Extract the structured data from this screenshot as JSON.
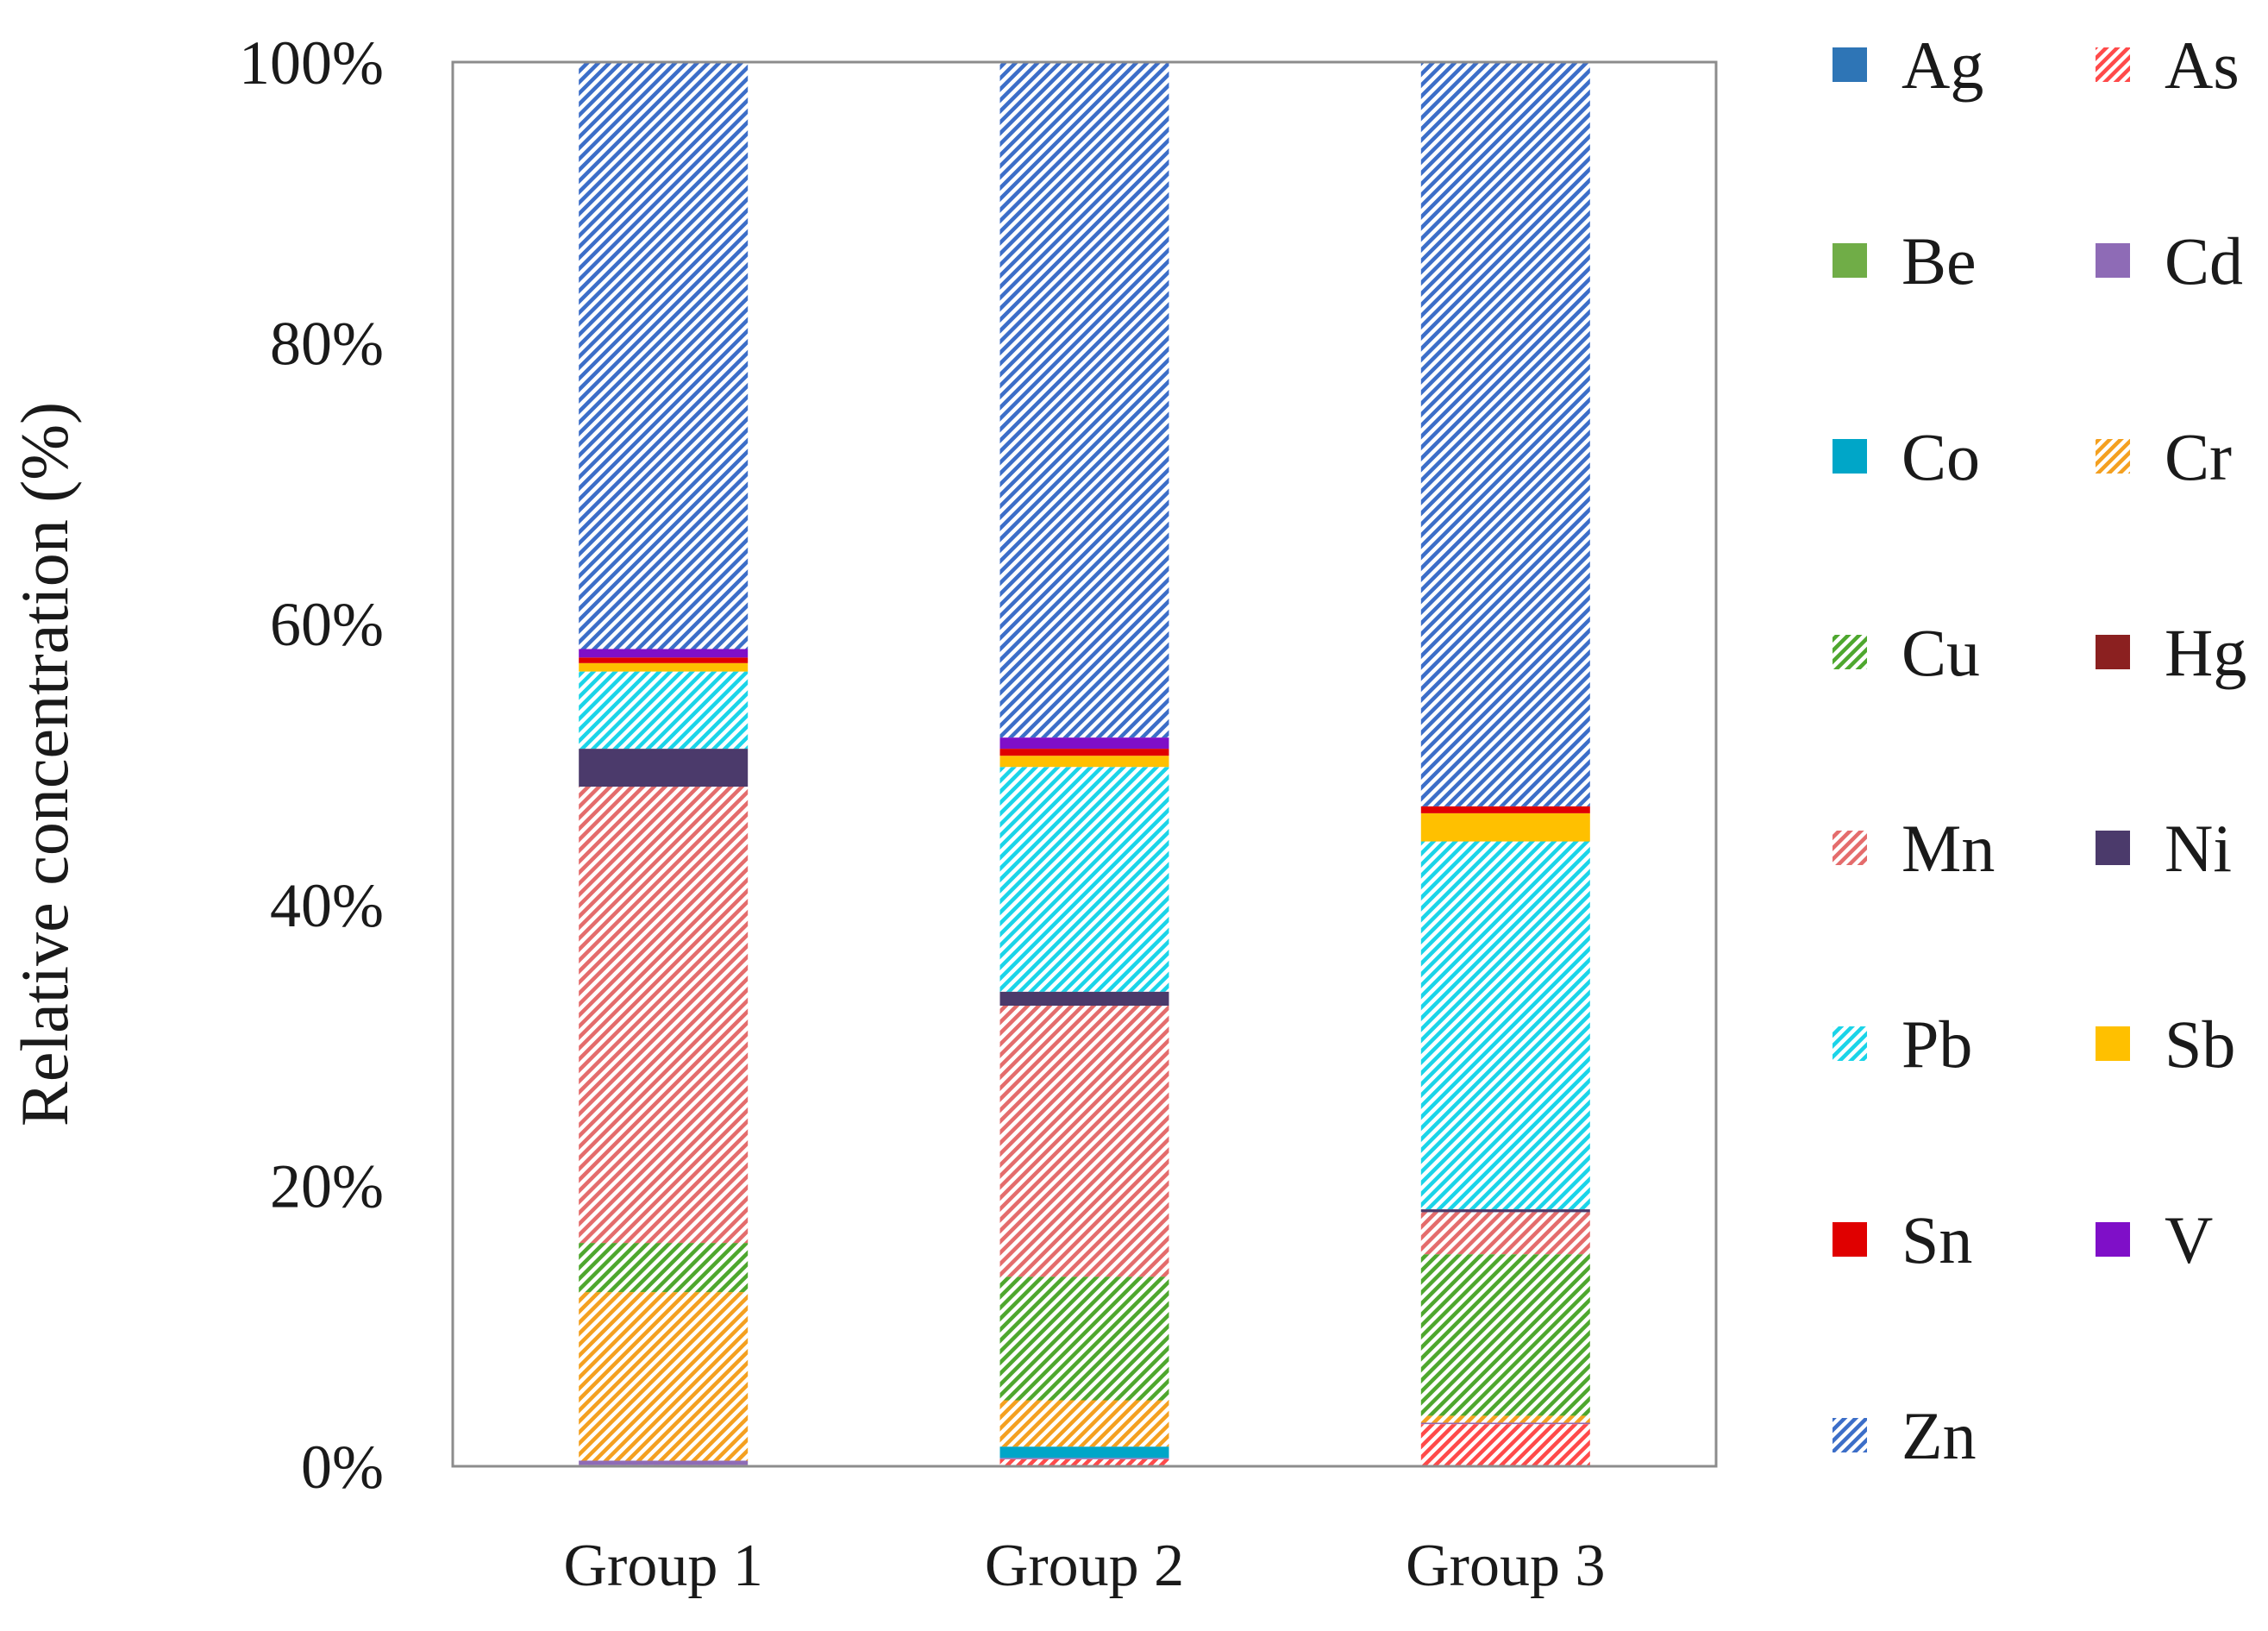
{
  "chart_data": {
    "type": "bar",
    "stacked": true,
    "percent": true,
    "title": "",
    "xlabel": "",
    "ylabel": "Relative concentration (%)",
    "ylim": [
      0,
      100
    ],
    "yticks": [
      0,
      20,
      40,
      60,
      80,
      100
    ],
    "ytick_labels": [
      "0%",
      "20%",
      "40%",
      "60%",
      "80%",
      "100%"
    ],
    "categories": [
      "Group 1",
      "Group 2",
      "Group 3"
    ],
    "legend_position": "right",
    "series": [
      {
        "name": "Ag",
        "color": "#2E75B6",
        "pattern": "solid",
        "values": [
          0.0,
          0.0,
          0.0
        ]
      },
      {
        "name": "As",
        "color": "#FF4A4A",
        "pattern": "hatch",
        "values": [
          0.1,
          0.5,
          3.0
        ]
      },
      {
        "name": "Be",
        "color": "#70AD47",
        "pattern": "solid",
        "values": [
          0.0,
          0.0,
          0.0
        ]
      },
      {
        "name": "Cd",
        "color": "#8E6BB6",
        "pattern": "solid",
        "values": [
          0.3,
          0.1,
          0.1
        ]
      },
      {
        "name": "Co",
        "color": "#00A6C8",
        "pattern": "solid",
        "values": [
          0.0,
          0.8,
          0.0
        ]
      },
      {
        "name": "Cr",
        "color": "#F4A020",
        "pattern": "hatch",
        "values": [
          12.0,
          3.3,
          0.5
        ]
      },
      {
        "name": "Cu",
        "color": "#4EA72E",
        "pattern": "hatch",
        "values": [
          3.5,
          8.8,
          11.5
        ]
      },
      {
        "name": "Hg",
        "color": "#8B2020",
        "pattern": "solid",
        "values": [
          0.0,
          0.0,
          0.0
        ]
      },
      {
        "name": "Mn",
        "color": "#E46C6C",
        "pattern": "hatch",
        "values": [
          32.5,
          19.3,
          3.0
        ]
      },
      {
        "name": "Ni",
        "color": "#4B3A6B",
        "pattern": "solid",
        "values": [
          2.7,
          1.0,
          0.2
        ]
      },
      {
        "name": "Pb",
        "color": "#1BD4E8",
        "pattern": "hatch",
        "values": [
          5.5,
          16.0,
          26.2
        ]
      },
      {
        "name": "Sb",
        "color": "#FFC000",
        "pattern": "solid",
        "values": [
          0.6,
          0.8,
          2.0
        ]
      },
      {
        "name": "Sn",
        "color": "#E00000",
        "pattern": "solid",
        "values": [
          0.4,
          0.5,
          0.5
        ]
      },
      {
        "name": "V",
        "color": "#7F0FC8",
        "pattern": "solid",
        "values": [
          0.6,
          0.8,
          0.0
        ]
      },
      {
        "name": "Zn",
        "color": "#3C6EC8",
        "pattern": "hatch",
        "values": [
          41.8,
          48.1,
          53.0
        ]
      }
    ]
  }
}
